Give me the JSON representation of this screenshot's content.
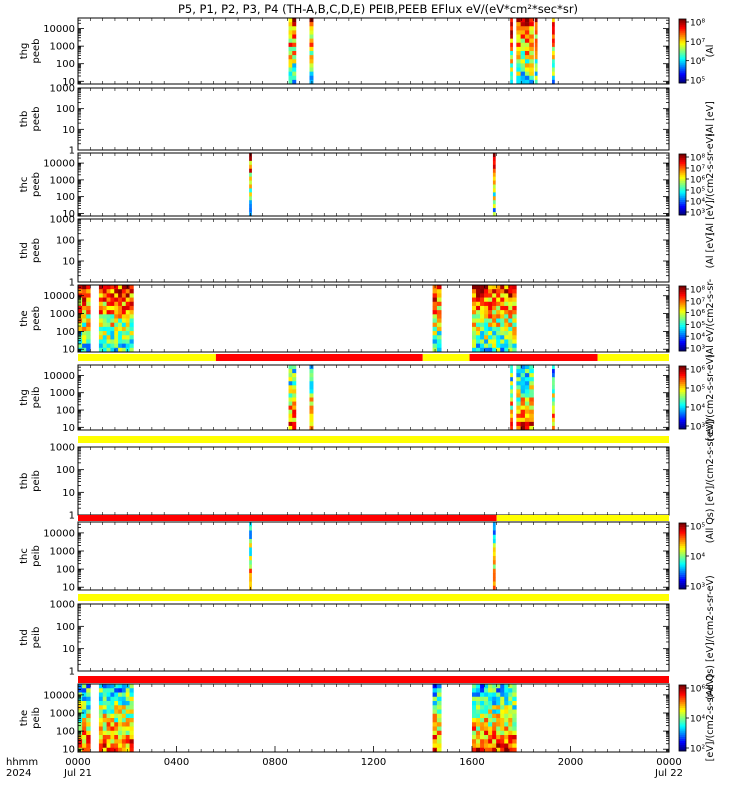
{
  "title": "P5, P1, P2, P3, P4 (TH-A,B,C,D,E) PEIB,PEEB EFlux eV/(eV*cm²*sec*sr)",
  "footer": {
    "hhmm": "hhmm",
    "year": "2024",
    "tick_labels": [
      "0000",
      "0400",
      "0800",
      "1200",
      "1600",
      "2000",
      "0000"
    ],
    "start_date": "Jul 21",
    "end_date": "Jul 22"
  },
  "chart_data": {
    "type": "heatmap",
    "x_unit": "hours since 2024-07-21 00:00",
    "xlim": [
      0,
      24
    ],
    "x_ticks": [
      0,
      4,
      8,
      12,
      16,
      20,
      24
    ],
    "yscale": "log",
    "panels": [
      {
        "ylabel": [
          "thg",
          "peeb"
        ],
        "ylim": [
          7,
          40000
        ],
        "yticks": [
          10,
          100,
          1000,
          10000
        ],
        "ytick_labels": [
          "10",
          "100",
          "1000",
          "10000"
        ],
        "cbar": {
          "label": "(Al",
          "ticks": [
            5,
            6,
            7,
            8
          ],
          "tick_labels": [
            "10⁵",
            "10⁶",
            "10⁷",
            "10⁸"
          ]
        },
        "data_intervals": [
          [
            8.55,
            8.85
          ],
          [
            9.4,
            9.55
          ],
          [
            17.55,
            17.65
          ],
          [
            17.8,
            18.5
          ],
          [
            18.55,
            18.65
          ],
          [
            19.25,
            19.35
          ]
        ]
      },
      {
        "ylabel": [
          "thb",
          "peeb"
        ],
        "ylim": [
          1,
          1000
        ],
        "yticks": [
          1,
          10,
          100,
          1000
        ],
        "ytick_labels": [
          "1",
          "10",
          "100",
          "1000"
        ],
        "cbar": {
          "label": "(Al [eV]",
          "ticks": [],
          "tick_labels": []
        },
        "data_intervals": []
      },
      {
        "ylabel": [
          "thc",
          "peeb"
        ],
        "ylim": [
          7,
          40000
        ],
        "yticks": [
          10,
          100,
          1000,
          10000
        ],
        "ytick_labels": [
          "10",
          "100",
          "1000",
          "10000"
        ],
        "cbar": {
          "label": "(Al [eV]/(cm2-s-sr-eV)",
          "ticks": [
            3,
            4,
            5,
            6,
            7,
            8
          ],
          "tick_labels": [
            "10³",
            "10⁴",
            "10⁵",
            "10⁶",
            "10⁷",
            "10⁸"
          ]
        },
        "data_intervals": [
          [
            6.95,
            7.05
          ],
          [
            16.85,
            16.95
          ]
        ]
      },
      {
        "ylabel": [
          "thd",
          "peeb"
        ],
        "ylim": [
          1,
          1000
        ],
        "yticks": [
          1,
          10,
          100,
          1000
        ],
        "ytick_labels": [
          "1",
          "10",
          "100",
          "1000"
        ],
        "cbar": {
          "label": "(Al [eV]",
          "ticks": [],
          "tick_labels": []
        },
        "data_intervals": []
      },
      {
        "ylabel": [
          "the",
          "peeb"
        ],
        "ylim": [
          7,
          40000
        ],
        "yticks": [
          10,
          100,
          1000,
          10000
        ],
        "ytick_labels": [
          "10",
          "100",
          "1000",
          "10000"
        ],
        "cbar": {
          "label": "(Al eV/(cm2-s-sr-",
          "ticks": [
            3,
            4,
            5,
            6,
            7,
            8
          ],
          "tick_labels": [
            "10³",
            "10⁴",
            "10⁵",
            "10⁶",
            "10⁷",
            "10⁸"
          ]
        },
        "data_intervals": [
          [
            0.0,
            0.5
          ],
          [
            0.85,
            2.25
          ],
          [
            14.4,
            14.75
          ],
          [
            16.0,
            17.8
          ]
        ]
      },
      {
        "ylabel": [
          "thg",
          "peib"
        ],
        "ylim": [
          7,
          40000
        ],
        "yticks": [
          10,
          100,
          1000,
          10000
        ],
        "ytick_labels": [
          "10",
          "100",
          "1000",
          "10000"
        ],
        "cbar": {
          "label": "[eV]/(cm2-s-sr-eV)",
          "ticks": [
            3,
            4,
            5,
            6
          ],
          "tick_labels": [
            "10³",
            "10⁴",
            "10⁵",
            "10⁶"
          ]
        },
        "data_intervals": [
          [
            8.55,
            8.85
          ],
          [
            9.4,
            9.55
          ],
          [
            17.55,
            17.65
          ],
          [
            17.8,
            18.5
          ],
          [
            19.25,
            19.35
          ]
        ]
      },
      {
        "ylabel": [
          "thb",
          "peib"
        ],
        "ylim": [
          1,
          1000
        ],
        "yticks": [
          1,
          10,
          100,
          1000
        ],
        "ytick_labels": [
          "1",
          "10",
          "100",
          "1000"
        ],
        "cbar": {
          "label": "(All Qs) [eV]/(cm2-s-sr-eV)",
          "ticks": [],
          "tick_labels": []
        },
        "data_intervals": []
      },
      {
        "ylabel": [
          "thc",
          "peib"
        ],
        "ylim": [
          7,
          40000
        ],
        "yticks": [
          10,
          100,
          1000,
          10000
        ],
        "ytick_labels": [
          "10",
          "100",
          "1000",
          "10000"
        ],
        "cbar": {
          "label": "",
          "ticks": [
            3,
            4,
            5
          ],
          "tick_labels": [
            "10³",
            "10⁴",
            "10⁵"
          ]
        },
        "data_intervals": [
          [
            6.95,
            7.05
          ],
          [
            16.85,
            16.95
          ]
        ]
      },
      {
        "ylabel": [
          "thd",
          "peib"
        ],
        "ylim": [
          1,
          1000
        ],
        "yticks": [
          1,
          10,
          100,
          1000
        ],
        "ytick_labels": [
          "1",
          "10",
          "100",
          "1000"
        ],
        "cbar": {
          "label": "(All Qs) [eV]/(cm2-s-sr-eV)",
          "ticks": [],
          "tick_labels": []
        },
        "data_intervals": []
      },
      {
        "ylabel": [
          "the",
          "peib"
        ],
        "ylim": [
          7,
          40000
        ],
        "yticks": [
          10,
          100,
          1000,
          10000
        ],
        "ytick_labels": [
          "10",
          "100",
          "1000",
          "10000"
        ],
        "cbar": {
          "label": "[eV]/(cm2-s-sr-eV)",
          "ticks": [
            2,
            4,
            6
          ],
          "tick_labels": [
            "10²",
            "10⁴",
            "10⁶"
          ]
        },
        "data_intervals": [
          [
            0.0,
            0.5
          ],
          [
            0.85,
            2.25
          ],
          [
            14.4,
            14.75
          ],
          [
            16.0,
            17.8
          ]
        ]
      }
    ],
    "mode_bars": [
      {
        "after_panel": 4,
        "segments": [
          [
            0,
            5.6,
            "#ffff00"
          ],
          [
            5.6,
            14.0,
            "#ff0000"
          ],
          [
            14.0,
            15.9,
            "#ffff00"
          ],
          [
            15.9,
            21.1,
            "#ff0000"
          ],
          [
            21.1,
            24,
            "#ffff00"
          ]
        ]
      },
      {
        "after_panel": 5,
        "segments": [
          [
            0,
            24,
            "#ffff00"
          ]
        ]
      },
      {
        "after_panel": 6,
        "segments": [
          [
            0,
            17.0,
            "#ff0000"
          ],
          [
            17.0,
            24,
            "#ffff00"
          ]
        ]
      },
      {
        "after_panel": 7,
        "segments": [
          [
            0,
            24,
            "#ffff00"
          ]
        ]
      },
      {
        "after_panel": 8,
        "segments": [
          [
            0,
            24,
            "#ff0000"
          ]
        ]
      }
    ]
  }
}
